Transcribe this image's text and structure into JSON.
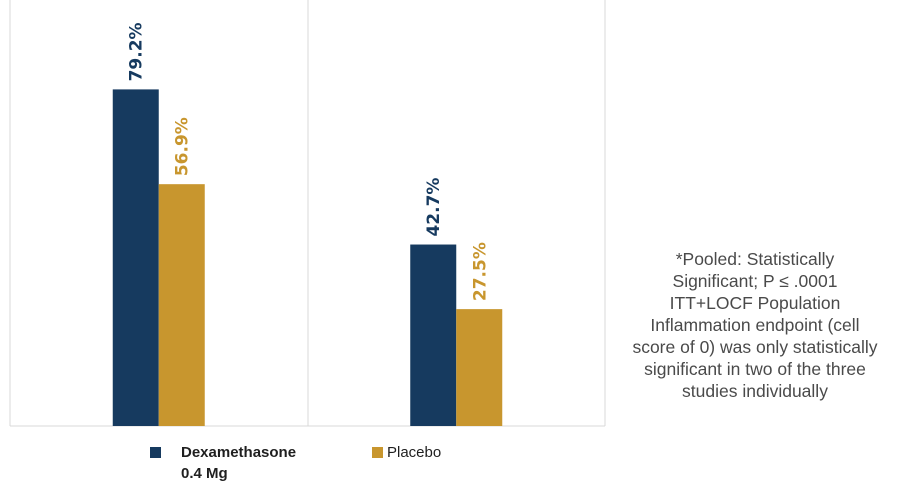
{
  "chart_data": {
    "type": "bar",
    "categories": [
      "",
      ""
    ],
    "series": [
      {
        "name": "Dexamethasone 0.4 Mg",
        "values": [
          79.2,
          42.7
        ],
        "labels": [
          "79.2%",
          "42.7%"
        ],
        "color": "#163a5f"
      },
      {
        "name": "Placebo",
        "values": [
          56.9,
          27.5
        ],
        "labels": [
          "56.9%",
          "27.5%"
        ],
        "color": "#c8962e"
      }
    ],
    "ylim": [
      0,
      100
    ],
    "grid": false,
    "legend": "bottom"
  },
  "legend": {
    "dex_line1": "Dexamethasone",
    "dex_line2": "0.4 Mg",
    "placebo": "Placebo"
  },
  "footnote": {
    "lines": [
      "*Pooled: Statistically",
      "Significant; P ≤ .0001",
      "ITT+LOCF Population",
      "Inflammation endpoint (cell",
      "score of 0) was only statistically",
      "significant in two of the three",
      "studies individually"
    ]
  }
}
